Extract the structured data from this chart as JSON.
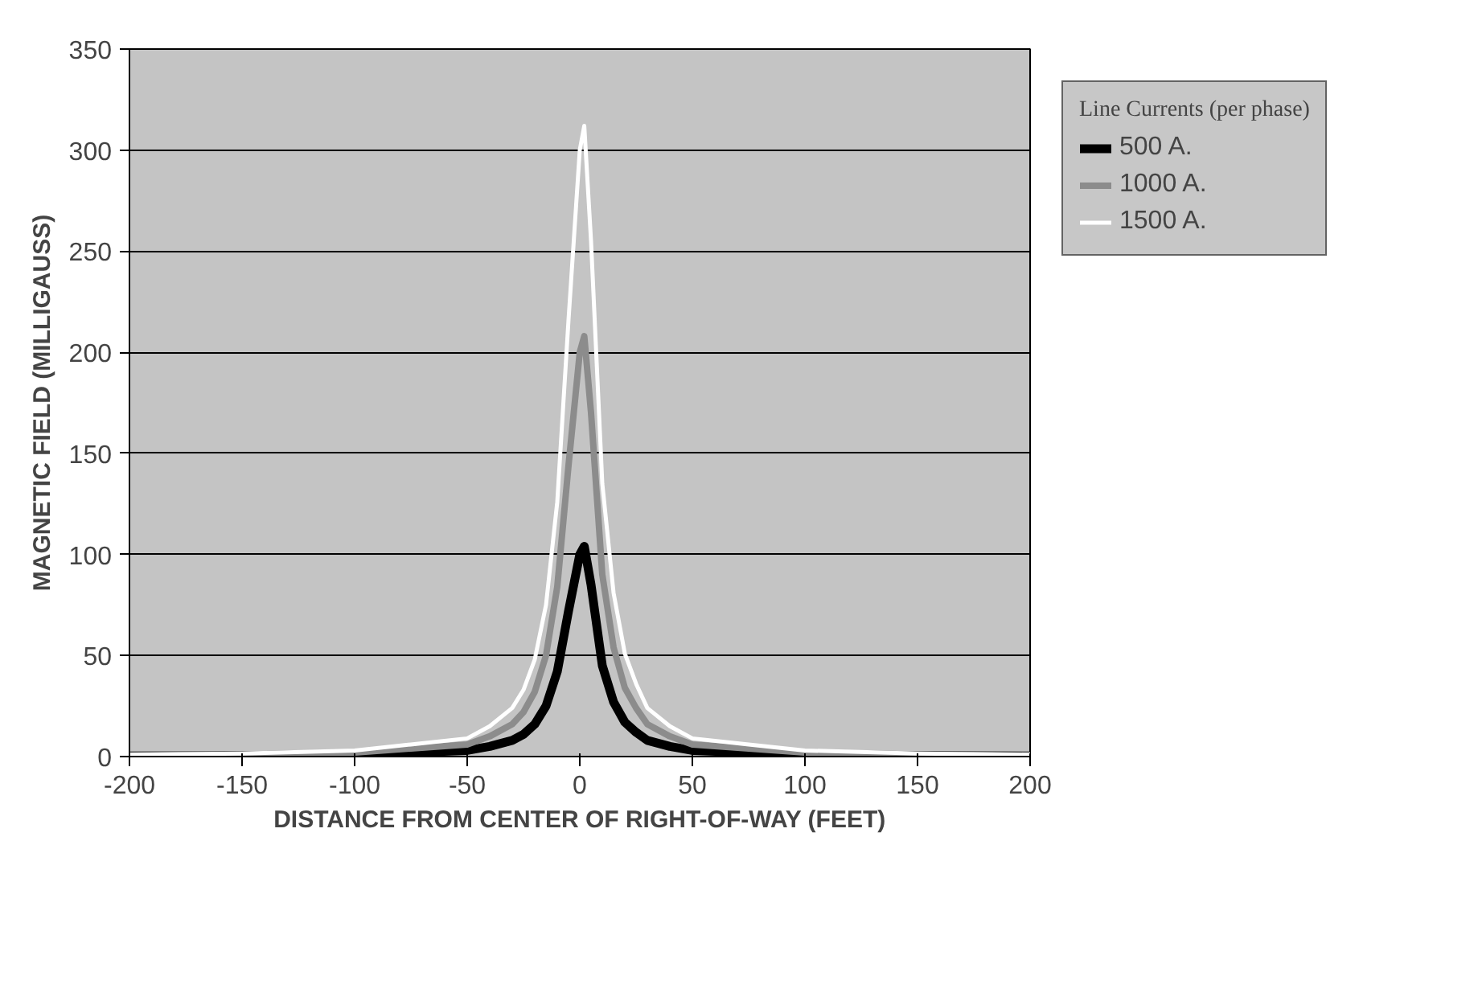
{
  "chart_data": {
    "type": "line",
    "xlabel": "DISTANCE FROM CENTER OF RIGHT-OF-WAY (FEET)",
    "ylabel": "MAGNETIC FIELD (MILLIGAUSS)",
    "legend_title": "Line Currents (per phase)",
    "x": [
      -200,
      -150,
      -100,
      -75,
      -50,
      -40,
      -30,
      -25,
      -20,
      -15,
      -10,
      -5,
      0,
      2,
      5,
      10,
      15,
      20,
      25,
      30,
      40,
      50,
      75,
      100,
      150,
      200
    ],
    "series": [
      {
        "name": "500 A.",
        "color": "#000000",
        "values": [
          0.3,
          0.5,
          1,
          2,
          3,
          5,
          8,
          11,
          16,
          25,
          42,
          72,
          100,
          104,
          85,
          45,
          27,
          17,
          12,
          8,
          5,
          3,
          2,
          1,
          0.5,
          0.3
        ]
      },
      {
        "name": "1000 A.",
        "color": "#8c8c8c",
        "values": [
          0.6,
          1,
          2,
          4,
          6,
          10,
          16,
          22,
          32,
          50,
          84,
          144,
          200,
          208,
          170,
          90,
          54,
          34,
          24,
          16,
          10,
          6,
          4,
          2,
          1,
          0.6
        ]
      },
      {
        "name": "1500 A.",
        "color": "#ffffff",
        "values": [
          0.9,
          1.5,
          3,
          6,
          9,
          15,
          24,
          33,
          48,
          75,
          126,
          216,
          300,
          312,
          255,
          135,
          81,
          51,
          36,
          24,
          15,
          9,
          6,
          3,
          1.5,
          0.9
        ]
      }
    ],
    "xlim": [
      -200,
      200
    ],
    "xticks": [
      -200,
      -150,
      -100,
      -50,
      0,
      50,
      100,
      150,
      200
    ],
    "ylim": [
      0,
      350
    ],
    "yticks": [
      0,
      50,
      100,
      150,
      200,
      250,
      300,
      350
    ],
    "grid": "y",
    "legend": "right",
    "line_style": "solid"
  }
}
